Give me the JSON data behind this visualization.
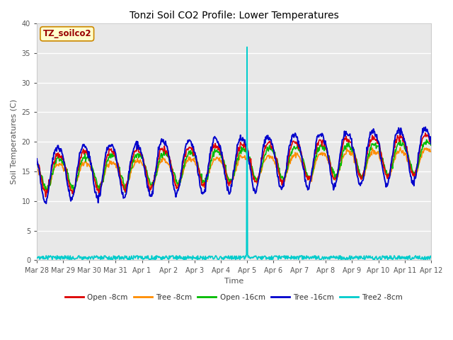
{
  "title": "Tonzi Soil CO2 Profile: Lower Temperatures",
  "xlabel": "Time",
  "ylabel": "Soil Temperatures (C)",
  "ylim": [
    0,
    40
  ],
  "xlim_days": [
    0,
    15
  ],
  "bg_color": "#e8e8e8",
  "fig_bg_color": "#ffffff",
  "label_box_text": "TZ_soilco2",
  "label_box_facecolor": "#ffffcc",
  "label_box_edgecolor": "#cc8800",
  "label_box_textcolor": "#990000",
  "series_open8": {
    "label": "Open -8cm",
    "color": "#dd0000",
    "lw": 1.2
  },
  "series_tree8": {
    "label": "Tree -8cm",
    "color": "#ff8c00",
    "lw": 1.2
  },
  "series_open16": {
    "label": "Open -16cm",
    "color": "#00bb00",
    "lw": 1.2
  },
  "series_tree16": {
    "label": "Tree -16cm",
    "color": "#0000cc",
    "lw": 1.4
  },
  "series_tree2_8": {
    "label": "Tree2 -8cm",
    "color": "#00cccc",
    "lw": 1.2
  },
  "xtick_labels": [
    "Mar 28",
    "Mar 29",
    "Mar 30",
    "Mar 31",
    "Apr 1",
    "Apr 2",
    "Apr 3",
    "Apr 4",
    "Apr 5",
    "Apr 6",
    "Apr 7",
    "Apr 8",
    "Apr 9",
    "Apr 10",
    "Apr 11",
    "Apr 12"
  ],
  "yticks": [
    0,
    5,
    10,
    15,
    20,
    25,
    30,
    35,
    40
  ],
  "spike_day": 8,
  "spike_value": 36,
  "title_fontsize": 10,
  "axis_label_fontsize": 8,
  "tick_fontsize": 7
}
